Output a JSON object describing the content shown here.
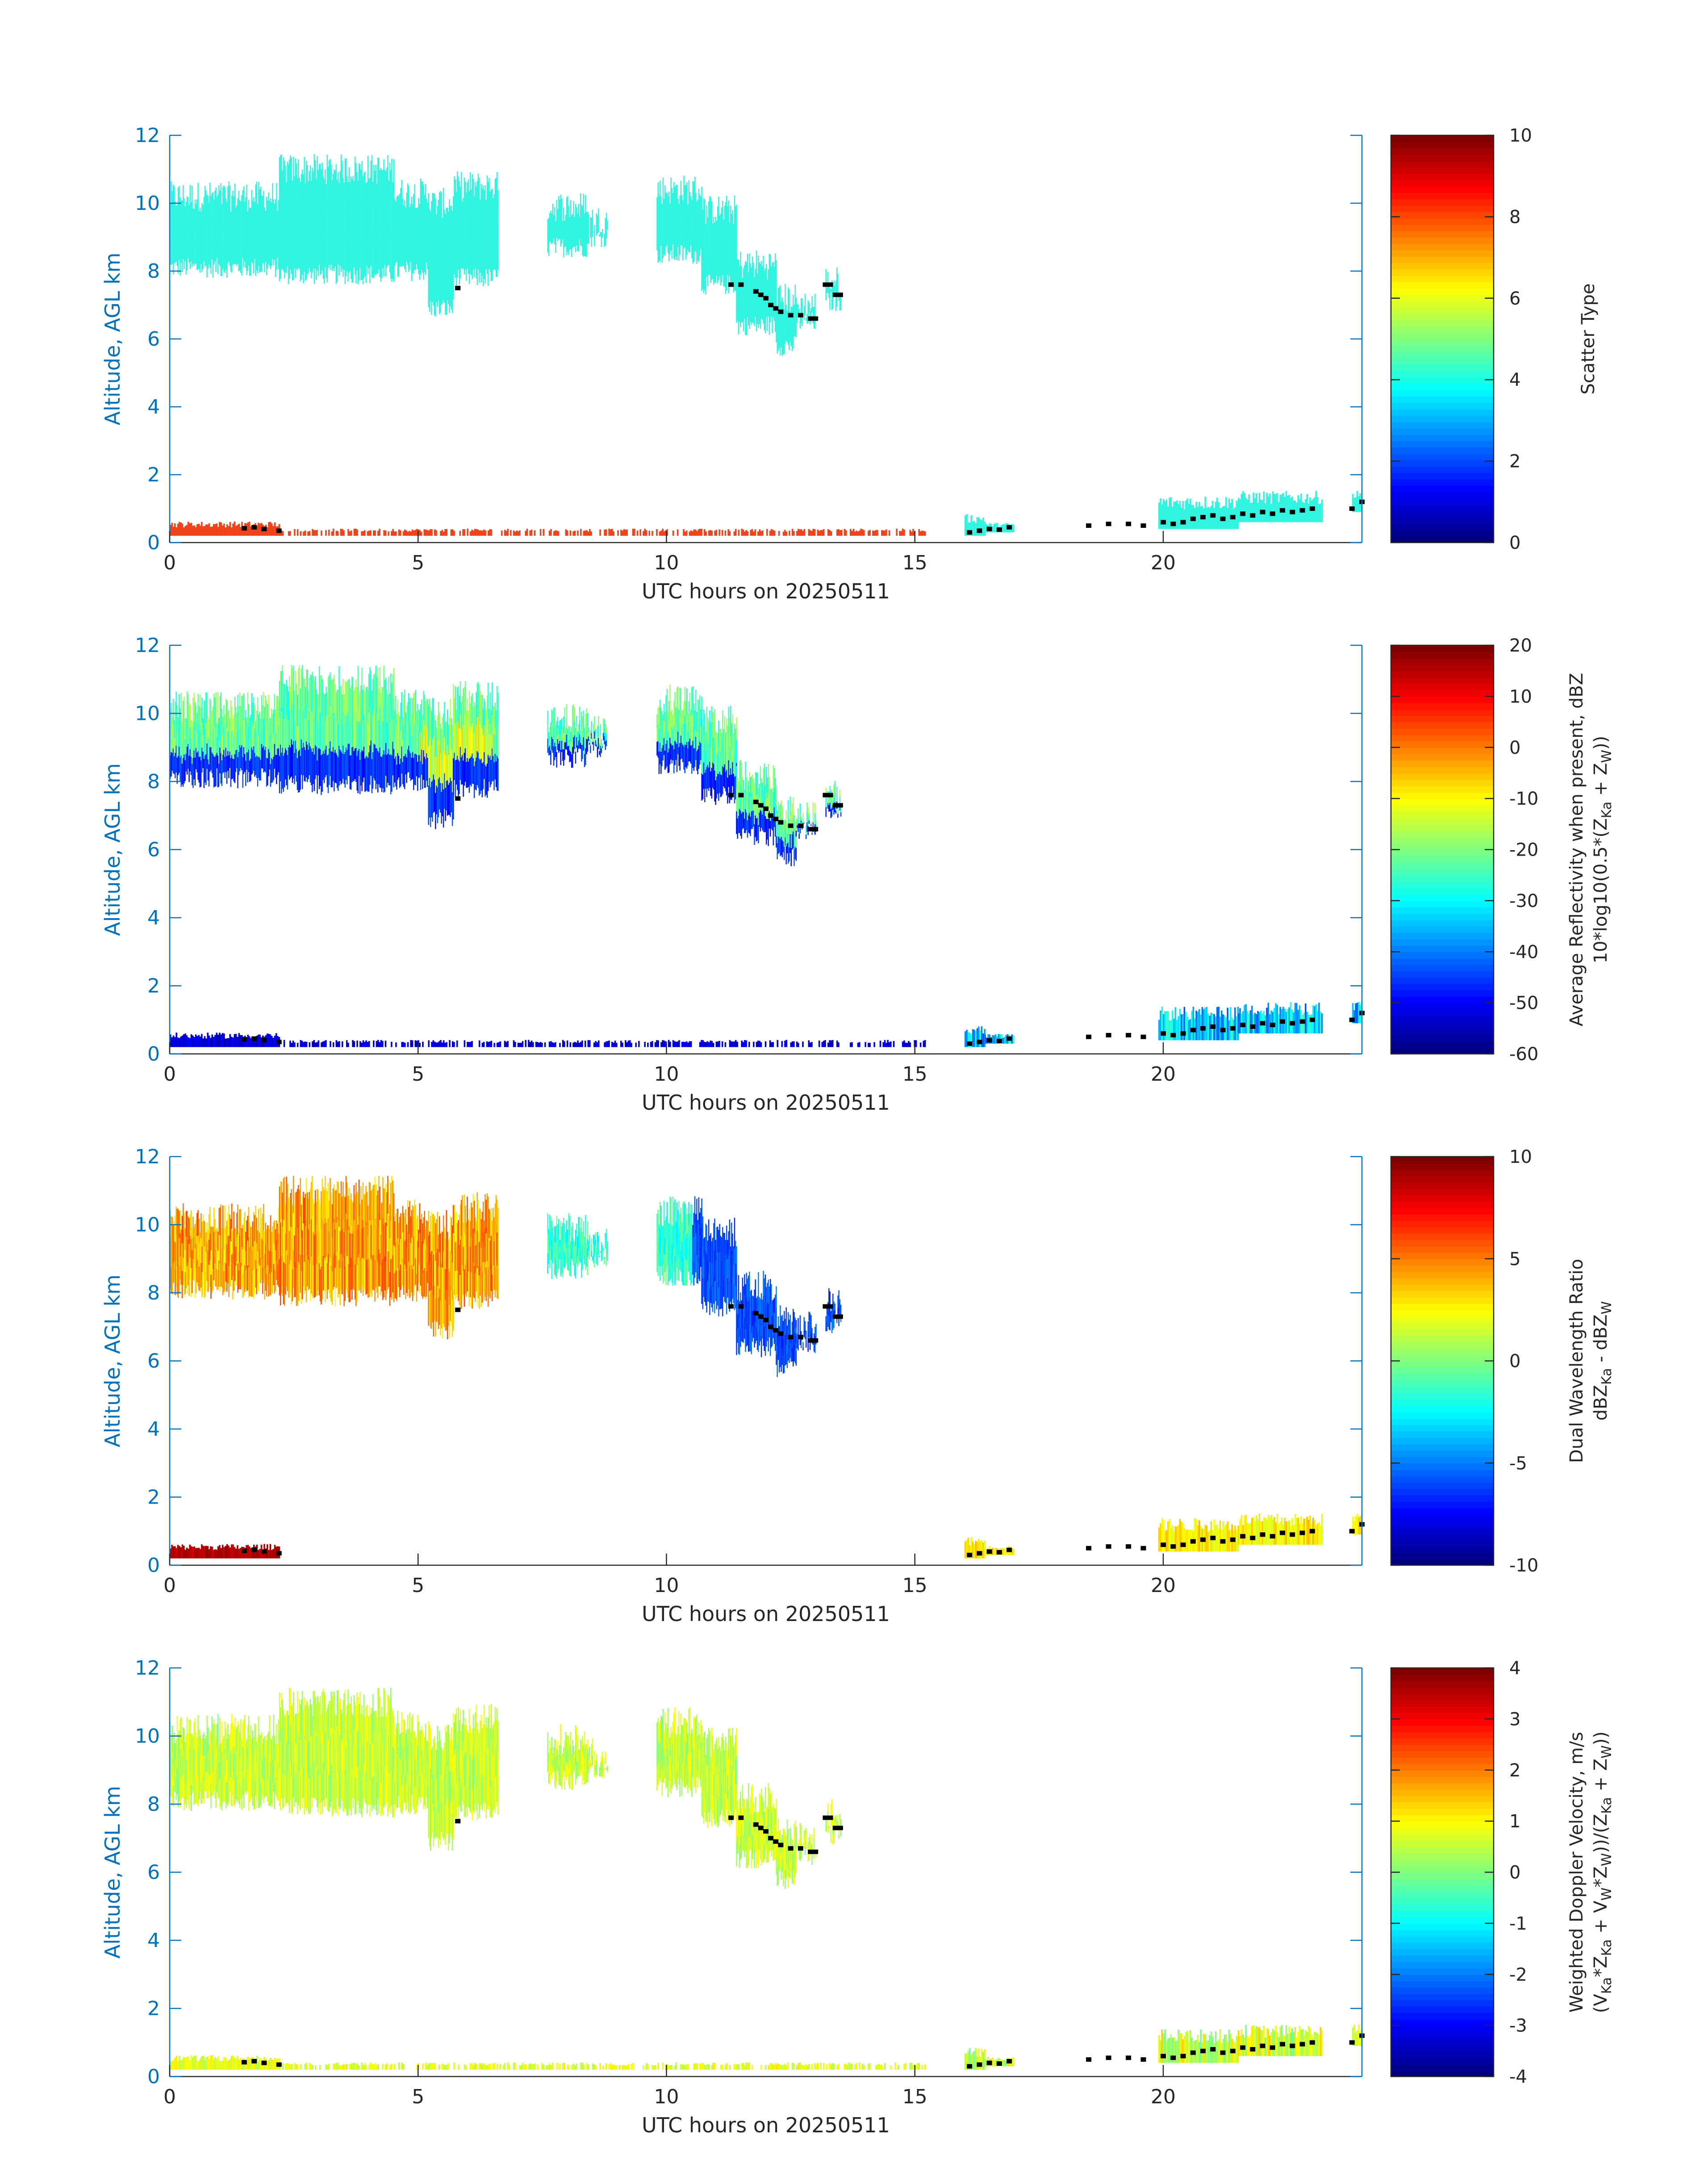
{
  "colors": {
    "axis": "#0072bd",
    "text": "#262626",
    "scatter_type_cloud": "#2ff5e0",
    "scatter_type_low": "#f0431a",
    "cloud_base_points": "#000000",
    "colormap": "jet"
  },
  "chart_data": [
    {
      "type": "heatmap",
      "title": "",
      "xlabel": "UTC hours on 20250511",
      "ylabel": "Altitude, AGL km",
      "xlim": [
        0,
        24
      ],
      "ylim": [
        0,
        12
      ],
      "x_ticks": [
        "0",
        "5",
        "10",
        "15",
        "20"
      ],
      "y_ticks": [
        "0",
        "2",
        "4",
        "6",
        "8",
        "10",
        "12"
      ],
      "colorbar": {
        "label_lines": [
          "Scatter Type"
        ],
        "range": [
          0,
          10
        ],
        "ticks": [
          "0",
          "2",
          "4",
          "6",
          "8",
          "10"
        ]
      }
    },
    {
      "type": "heatmap",
      "title": "",
      "xlabel": "UTC hours on 20250511",
      "ylabel": "Altitude, AGL km",
      "xlim": [
        0,
        24
      ],
      "ylim": [
        0,
        12
      ],
      "x_ticks": [
        "0",
        "5",
        "10",
        "15",
        "20"
      ],
      "y_ticks": [
        "0",
        "2",
        "4",
        "6",
        "8",
        "10",
        "12"
      ],
      "colorbar": {
        "label_lines": [
          "Average Reflectivity when present, dBZ",
          "10*log10(0.5*(Z_Ka + Z_W))"
        ],
        "range": [
          -60,
          20
        ],
        "ticks": [
          "-60",
          "-50",
          "-40",
          "-30",
          "-20",
          "-10",
          "0",
          "10",
          "20"
        ]
      }
    },
    {
      "type": "heatmap",
      "title": "",
      "xlabel": "UTC hours on 20250511",
      "ylabel": "Altitude, AGL km",
      "xlim": [
        0,
        24
      ],
      "ylim": [
        0,
        12
      ],
      "x_ticks": [
        "0",
        "5",
        "10",
        "15",
        "20"
      ],
      "y_ticks": [
        "0",
        "2",
        "4",
        "6",
        "8",
        "10",
        "12"
      ],
      "colorbar": {
        "label_lines": [
          "Dual Wavelength Ratio",
          "dBZ_Ka - dBZ_W"
        ],
        "range": [
          -10,
          10
        ],
        "ticks": [
          "-10",
          "-5",
          "0",
          "5",
          "10"
        ]
      }
    },
    {
      "type": "heatmap",
      "title": "",
      "xlabel": "UTC hours on 20250511",
      "ylabel": "Altitude, AGL km",
      "xlim": [
        0,
        24
      ],
      "ylim": [
        0,
        12
      ],
      "x_ticks": [
        "0",
        "5",
        "10",
        "15",
        "20"
      ],
      "y_ticks": [
        "0",
        "2",
        "4",
        "6",
        "8",
        "10",
        "12"
      ],
      "colorbar": {
        "label_lines": [
          "Weighted Doppler Velocity, m/s",
          "(V_Ka*Z_Ka + V_W*Z_W))/(Z_Ka + Z_W))"
        ],
        "range": [
          -4,
          4
        ],
        "ticks": [
          "-4",
          "-3",
          "-2",
          "-1",
          "0",
          "1",
          "2",
          "3",
          "4"
        ]
      }
    }
  ],
  "cloud_regions": [
    {
      "x0": 0.0,
      "x1": 2.2,
      "base": 8.1,
      "top": 10.2
    },
    {
      "x0": 2.2,
      "x1": 4.5,
      "base": 7.9,
      "top": 11.0
    },
    {
      "x0": 4.5,
      "x1": 5.2,
      "base": 8.0,
      "top": 10.3
    },
    {
      "x0": 5.2,
      "x1": 5.7,
      "base": 6.9,
      "top": 10.0
    },
    {
      "x0": 5.7,
      "x1": 6.6,
      "base": 7.8,
      "top": 10.5
    },
    {
      "x0": 7.6,
      "x1": 8.4,
      "base": 8.7,
      "top": 9.9
    },
    {
      "x0": 8.4,
      "x1": 8.8,
      "base": 9.0,
      "top": 9.5
    },
    {
      "x0": 9.8,
      "x1": 10.7,
      "base": 8.5,
      "top": 10.4
    },
    {
      "x0": 10.7,
      "x1": 11.4,
      "base": 7.6,
      "top": 9.8
    },
    {
      "x0": 11.4,
      "x1": 12.2,
      "base": 6.4,
      "top": 8.2
    },
    {
      "x0": 12.2,
      "x1": 12.6,
      "base": 5.8,
      "top": 7.2
    },
    {
      "x0": 12.6,
      "x1": 13.0,
      "base": 6.5,
      "top": 7.0
    },
    {
      "x0": 13.2,
      "x1": 13.5,
      "base": 7.1,
      "top": 7.7
    }
  ],
  "boundary_layer_regions": [
    {
      "x0": 0.0,
      "x1": 2.2,
      "base": 0.2,
      "top": 0.5
    },
    {
      "x0": 2.2,
      "x1": 15.2,
      "base": 0.2,
      "top": 0.35
    },
    {
      "x0": 16.0,
      "x1": 16.4,
      "base": 0.2,
      "top": 0.65
    },
    {
      "x0": 16.4,
      "x1": 17.0,
      "base": 0.3,
      "top": 0.5
    },
    {
      "x0": 19.9,
      "x1": 21.5,
      "base": 0.4,
      "top": 1.1
    },
    {
      "x0": 21.5,
      "x1": 23.2,
      "base": 0.6,
      "top": 1.25
    },
    {
      "x0": 23.8,
      "x1": 24.0,
      "base": 0.9,
      "top": 1.35
    }
  ],
  "cloud_base_points": [
    {
      "x": 1.5,
      "y": 0.42
    },
    {
      "x": 1.7,
      "y": 0.45
    },
    {
      "x": 1.9,
      "y": 0.4
    },
    {
      "x": 2.2,
      "y": 0.35
    },
    {
      "x": 5.8,
      "y": 7.5
    },
    {
      "x": 11.3,
      "y": 7.6
    },
    {
      "x": 11.5,
      "y": 7.6
    },
    {
      "x": 11.8,
      "y": 7.4
    },
    {
      "x": 11.9,
      "y": 7.3
    },
    {
      "x": 12.0,
      "y": 7.2
    },
    {
      "x": 12.1,
      "y": 7.0
    },
    {
      "x": 12.2,
      "y": 6.9
    },
    {
      "x": 12.3,
      "y": 6.8
    },
    {
      "x": 12.5,
      "y": 6.7
    },
    {
      "x": 12.7,
      "y": 6.7
    },
    {
      "x": 12.9,
      "y": 6.6
    },
    {
      "x": 13.0,
      "y": 6.6
    },
    {
      "x": 13.2,
      "y": 7.6
    },
    {
      "x": 13.3,
      "y": 7.6
    },
    {
      "x": 13.4,
      "y": 7.3
    },
    {
      "x": 13.5,
      "y": 7.3
    },
    {
      "x": 16.1,
      "y": 0.3
    },
    {
      "x": 16.3,
      "y": 0.35
    },
    {
      "x": 16.5,
      "y": 0.4
    },
    {
      "x": 16.7,
      "y": 0.38
    },
    {
      "x": 16.9,
      "y": 0.45
    },
    {
      "x": 18.5,
      "y": 0.5
    },
    {
      "x": 18.9,
      "y": 0.55
    },
    {
      "x": 19.3,
      "y": 0.55
    },
    {
      "x": 19.6,
      "y": 0.5
    },
    {
      "x": 20.0,
      "y": 0.6
    },
    {
      "x": 20.2,
      "y": 0.55
    },
    {
      "x": 20.4,
      "y": 0.6
    },
    {
      "x": 20.6,
      "y": 0.7
    },
    {
      "x": 20.8,
      "y": 0.75
    },
    {
      "x": 21.0,
      "y": 0.8
    },
    {
      "x": 21.2,
      "y": 0.7
    },
    {
      "x": 21.4,
      "y": 0.75
    },
    {
      "x": 21.6,
      "y": 0.85
    },
    {
      "x": 21.8,
      "y": 0.8
    },
    {
      "x": 22.0,
      "y": 0.9
    },
    {
      "x": 22.2,
      "y": 0.85
    },
    {
      "x": 22.4,
      "y": 0.95
    },
    {
      "x": 22.6,
      "y": 0.9
    },
    {
      "x": 22.8,
      "y": 0.95
    },
    {
      "x": 23.0,
      "y": 1.0
    },
    {
      "x": 23.8,
      "y": 1.0
    },
    {
      "x": 24.0,
      "y": 1.2
    }
  ]
}
